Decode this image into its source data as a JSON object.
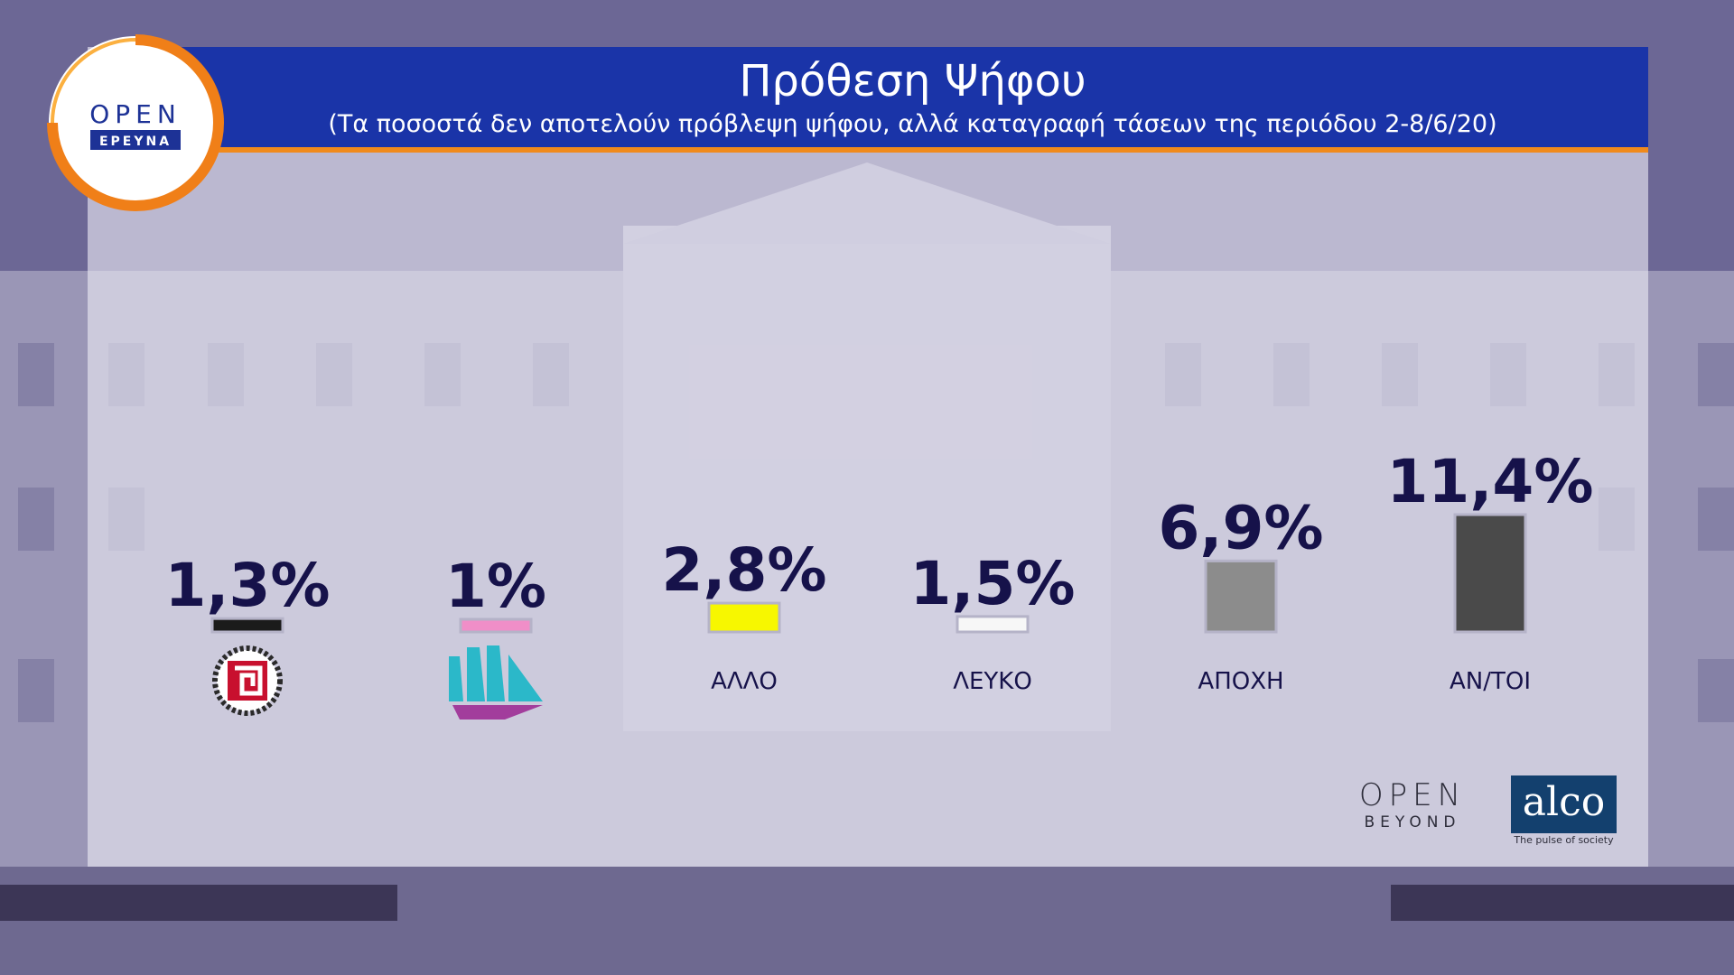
{
  "header": {
    "title": "Πρόθεση Ψήφου",
    "subtitle": "(Τα ποσοστά δεν αποτελούν πρόβλεψη ψήφου, αλλά καταγραφή τάσεων της περιόδου 2-8/6/20)"
  },
  "logos": {
    "open_top": "OPEN",
    "open_top_sub": "ΕΡΕΥΝΑ",
    "open_footer": "OPEN",
    "open_footer_sub": "BEYOND",
    "alco": "alco",
    "alco_tagline": "The pulse of society"
  },
  "chart_data": {
    "type": "bar",
    "categories": [
      "",
      "",
      "ΑΛΛΟ",
      "ΛΕΥΚΟ",
      "ΑΠΟΧΗ",
      "ΑΝ/ΤΟΙ"
    ],
    "category_icons": [
      "meander-party-logo",
      "ships-party-logo",
      null,
      null,
      null,
      null
    ],
    "values": [
      1.3,
      1.0,
      2.8,
      1.5,
      6.9,
      11.4
    ],
    "value_labels": [
      "1,3%",
      "1%",
      "2,8%",
      "1,5%",
      "6,9%",
      "11,4%"
    ],
    "colors": [
      "#1b1b1b",
      "#f08ec8",
      "#f7f700",
      "#f7f7f7",
      "#8c8c8c",
      "#4a4a4a"
    ],
    "unit": "%"
  }
}
